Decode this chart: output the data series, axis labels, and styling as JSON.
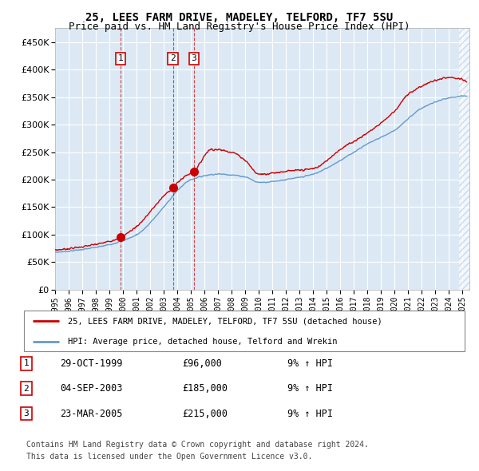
{
  "title": "25, LEES FARM DRIVE, MADELEY, TELFORD, TF7 5SU",
  "subtitle": "Price paid vs. HM Land Registry's House Price Index (HPI)",
  "legend_label_red": "25, LEES FARM DRIVE, MADELEY, TELFORD, TF7 5SU (detached house)",
  "legend_label_blue": "HPI: Average price, detached house, Telford and Wrekin",
  "footer1": "Contains HM Land Registry data © Crown copyright and database right 2024.",
  "footer2": "This data is licensed under the Open Government Licence v3.0.",
  "transactions": [
    {
      "num": 1,
      "date": "29-OCT-1999",
      "price": "£96,000",
      "hpi": "9% ↑ HPI",
      "year": 1999.83
    },
    {
      "num": 2,
      "date": "04-SEP-2003",
      "price": "£185,000",
      "hpi": "9% ↑ HPI",
      "year": 2003.67
    },
    {
      "num": 3,
      "date": "23-MAR-2005",
      "price": "£215,000",
      "hpi": "9% ↑ HPI",
      "year": 2005.22
    }
  ],
  "transaction_values": [
    96000,
    185000,
    215000
  ],
  "ylim": [
    0,
    475000
  ],
  "yticks": [
    0,
    50000,
    100000,
    150000,
    200000,
    250000,
    300000,
    350000,
    400000,
    450000
  ],
  "xlim_start": 1995.0,
  "xlim_end": 2025.5,
  "background_color": "#dce9f5",
  "hatch_color": "#b0c8e0",
  "grid_color": "#ffffff",
  "red_color": "#cc0000",
  "blue_color": "#6699cc",
  "title_fontsize": 10,
  "subtitle_fontsize": 9
}
